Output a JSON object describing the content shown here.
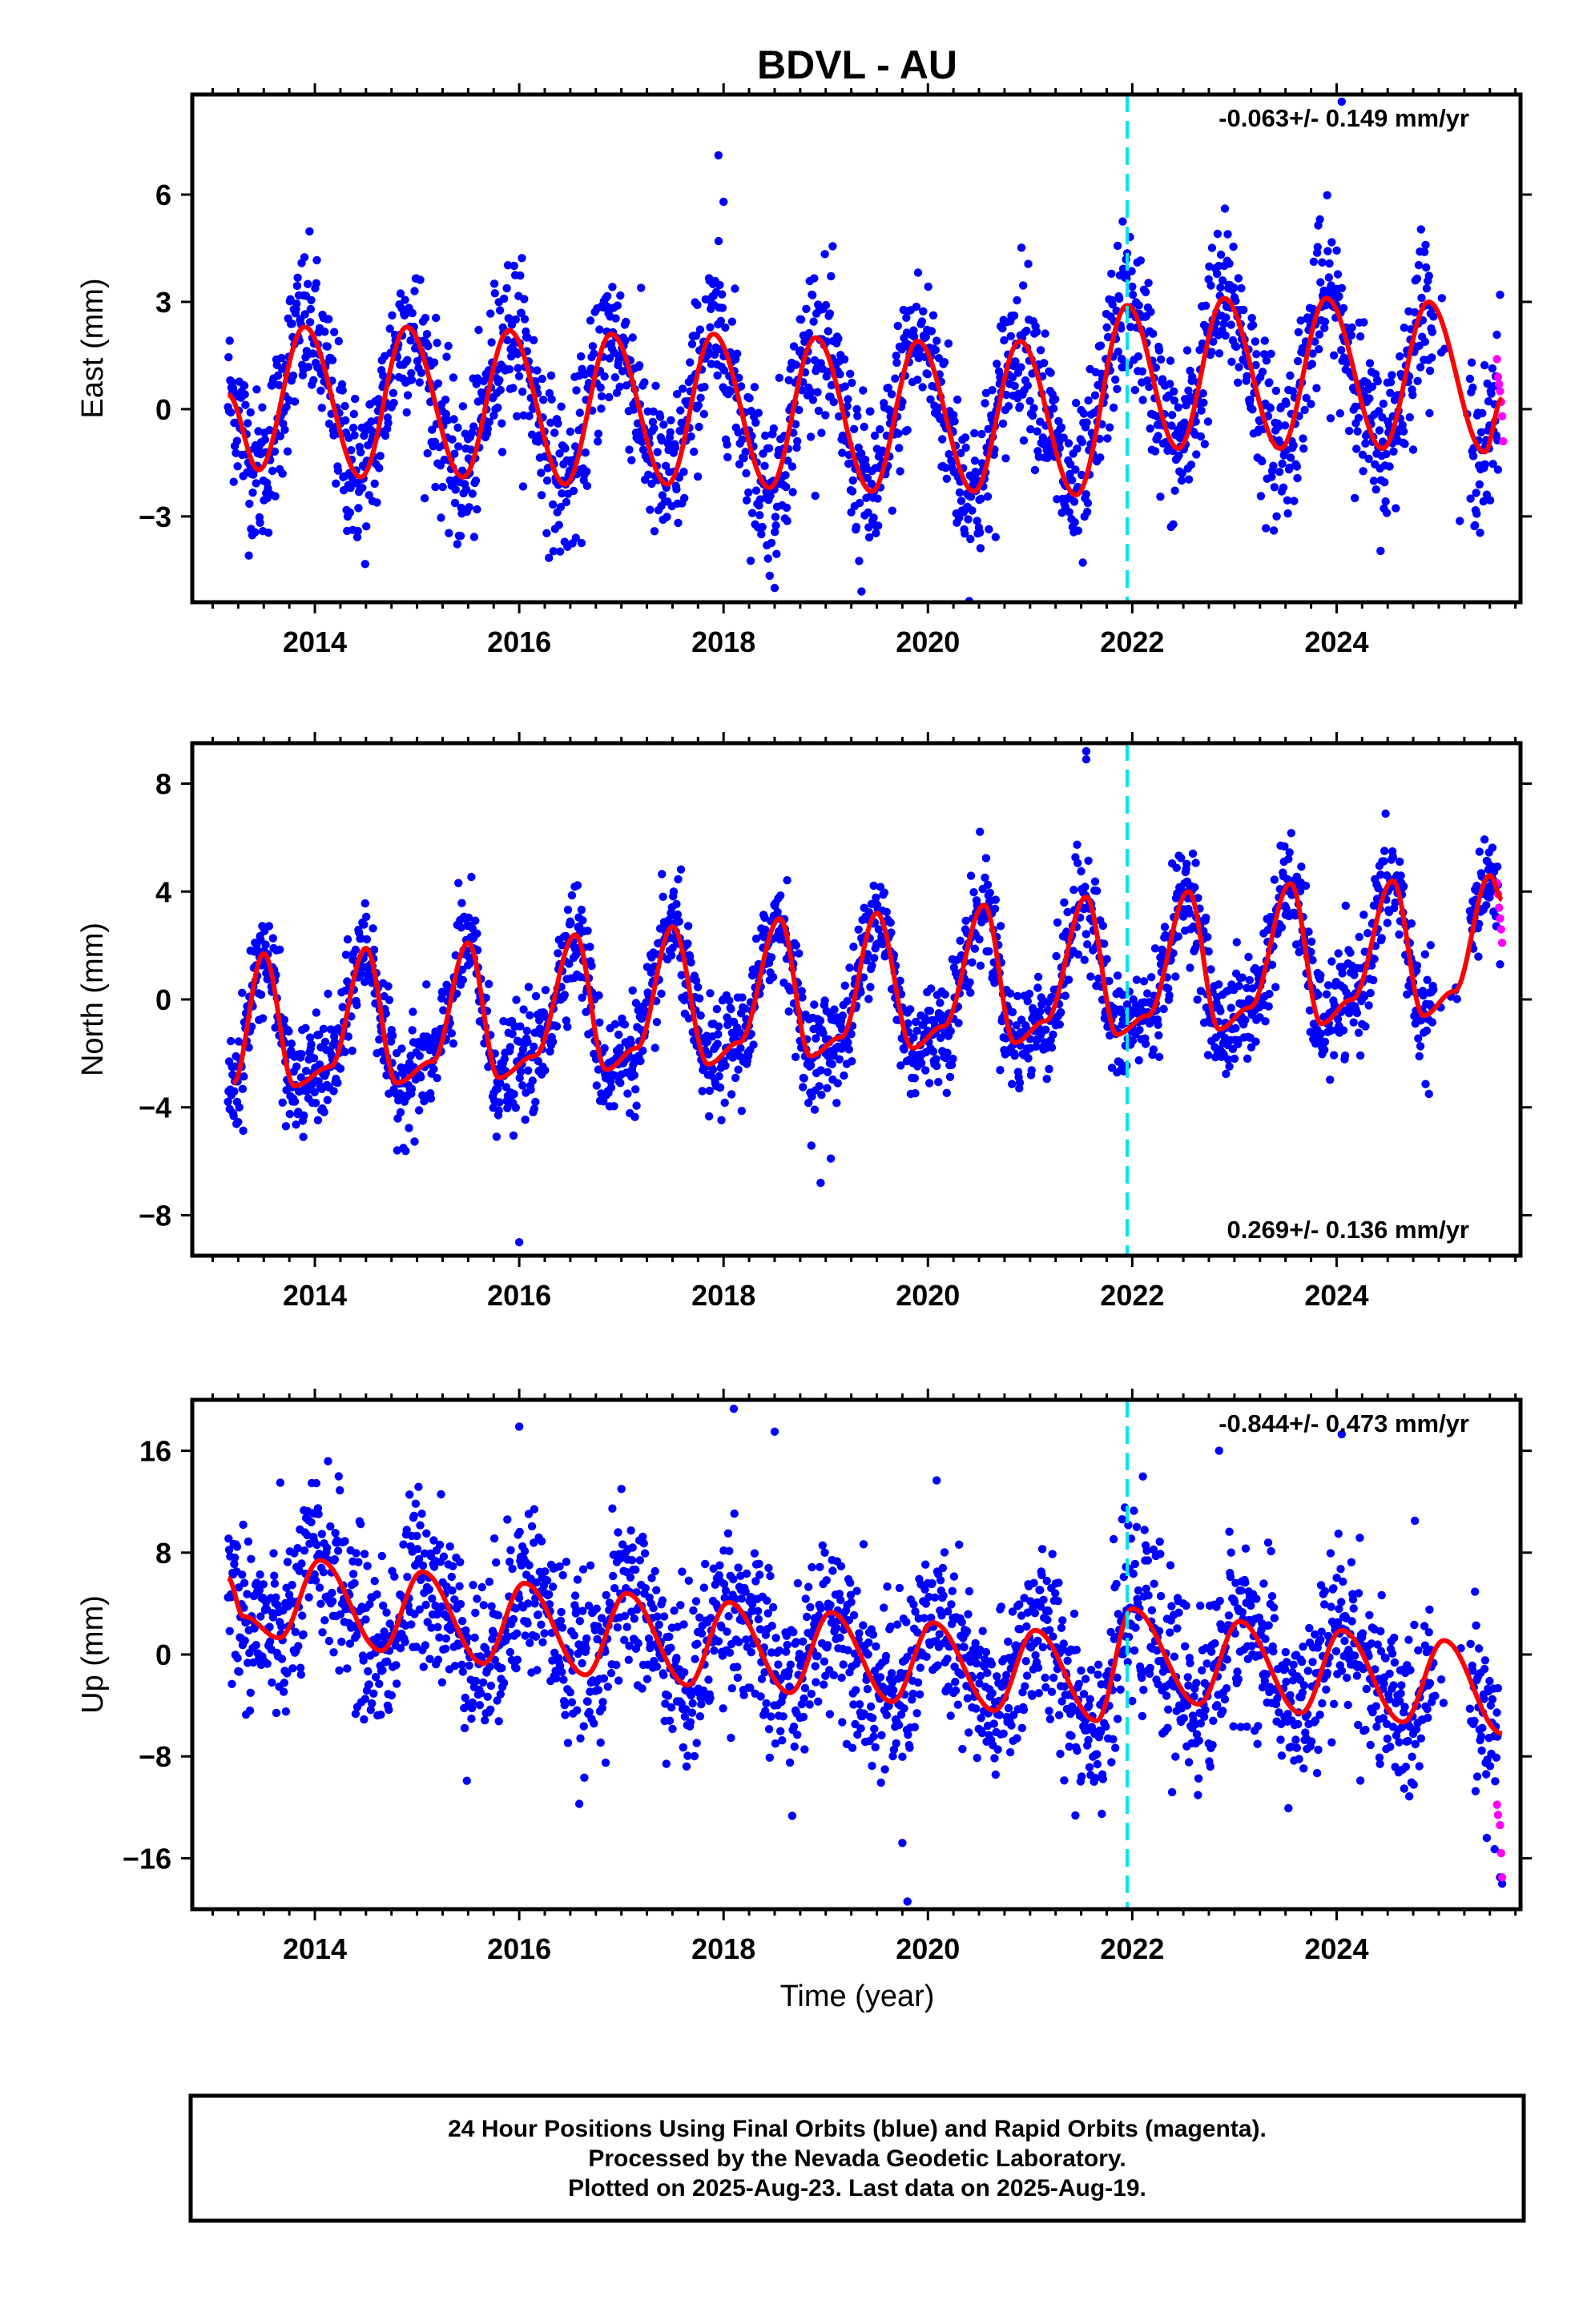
{
  "chart_data": {
    "type": "scatter",
    "title": "BDVL - AU",
    "xlabel": "Time (year)",
    "x_ticks": [
      2014,
      2016,
      2018,
      2020,
      2022,
      2024
    ],
    "xlim": [
      2012.8,
      2025.8
    ],
    "event_line_year": 2021.95,
    "colors": {
      "final_orbits": "#0000ff",
      "rapid_orbits": "#ff00ff",
      "model": "#ff0000",
      "event_line": "#00e5ee"
    },
    "panels": [
      {
        "id": "east",
        "ylabel": "East (mm)",
        "ylim": [
          -5.4,
          8.8
        ],
        "yticks": [
          6,
          3,
          0,
          -3
        ],
        "ytick_labels": [
          "6",
          "3",
          "0",
          "−3"
        ],
        "rate_label": "-0.063+/- 0.149 mm/yr",
        "rate_position": "top-right",
        "model": {
          "offset": 0.0,
          "trend": -0.063,
          "amp": 2.2,
          "amp_trend": 0.05,
          "peak": 0.9,
          "semi_amp": 0.25,
          "semi_peak": 0.2,
          "base_year": 2019.5
        },
        "noise": 1.1,
        "model_anchors": [
          [
            2013.15,
            0.4
          ],
          [
            2013.45,
            -1.7
          ],
          [
            2013.9,
            2.3
          ],
          [
            2014.45,
            -1.9
          ],
          [
            2014.9,
            2.3
          ],
          [
            2015.45,
            -1.9
          ],
          [
            2015.9,
            2.2
          ],
          [
            2016.45,
            -2.1
          ],
          [
            2016.9,
            2.1
          ],
          [
            2017.45,
            -2.1
          ],
          [
            2017.9,
            2.1
          ],
          [
            2018.45,
            -2.2
          ],
          [
            2018.9,
            2.0
          ],
          [
            2019.45,
            -2.3
          ],
          [
            2019.9,
            1.9
          ],
          [
            2020.45,
            -2.3
          ],
          [
            2020.9,
            1.9
          ],
          [
            2021.45,
            -2.4
          ],
          [
            2021.95,
            2.9
          ],
          [
            2022.45,
            -1.1
          ],
          [
            2022.9,
            3.1
          ],
          [
            2023.45,
            -1.1
          ],
          [
            2023.9,
            3.1
          ],
          [
            2024.45,
            -1.1
          ],
          [
            2024.9,
            3.0
          ],
          [
            2025.45,
            -1.2
          ],
          [
            2025.62,
            0.3
          ]
        ],
        "outliers": [
          [
            2017.95,
            7.1
          ],
          [
            2018.0,
            5.8
          ],
          [
            2024.05,
            8.6
          ],
          [
            2019.35,
            -5.1
          ],
          [
            2018.5,
            -5.0
          ],
          [
            2025.6,
            3.2
          ]
        ]
      },
      {
        "id": "north",
        "ylabel": "North (mm)",
        "ylim": [
          -9.5,
          9.5
        ],
        "yticks": [
          8,
          4,
          0,
          -4,
          -8
        ],
        "ytick_labels": [
          "8",
          "4",
          "0",
          "−4",
          "−8"
        ],
        "rate_label": "0.269+/- 0.136 mm/yr",
        "rate_position": "bottom-right",
        "model": {
          "offset": 0.0,
          "trend": 0.269,
          "amp": 2.4,
          "amp_trend": 0.1,
          "peak": 0.55,
          "semi_amp": 0.8,
          "semi_peak": 0.05,
          "base_year": 2019.5
        },
        "noise": 1.0,
        "model_anchors": [
          [
            2013.2,
            -3.1
          ],
          [
            2013.5,
            1.7
          ],
          [
            2013.8,
            -3.2
          ],
          [
            2014.15,
            -2.5
          ],
          [
            2014.5,
            1.9
          ],
          [
            2014.8,
            -3.1
          ],
          [
            2015.15,
            -2.3
          ],
          [
            2015.5,
            2.1
          ],
          [
            2015.8,
            -2.9
          ],
          [
            2016.15,
            -2.1
          ],
          [
            2016.55,
            2.4
          ],
          [
            2016.85,
            -2.6
          ],
          [
            2017.15,
            -1.8
          ],
          [
            2017.5,
            2.7
          ],
          [
            2017.85,
            -2.4
          ],
          [
            2018.15,
            -1.6
          ],
          [
            2018.55,
            3.0
          ],
          [
            2018.85,
            -2.1
          ],
          [
            2019.15,
            -1.4
          ],
          [
            2019.5,
            3.2
          ],
          [
            2019.85,
            -1.8
          ],
          [
            2020.15,
            -1.0
          ],
          [
            2020.55,
            3.5
          ],
          [
            2020.85,
            -1.6
          ],
          [
            2021.15,
            -0.8
          ],
          [
            2021.55,
            3.8
          ],
          [
            2021.85,
            -1.3
          ],
          [
            2022.15,
            -0.6
          ],
          [
            2022.55,
            4.0
          ],
          [
            2022.85,
            -1.1
          ],
          [
            2023.15,
            -0.3
          ],
          [
            2023.55,
            4.3
          ],
          [
            2023.85,
            -0.9
          ],
          [
            2024.15,
            0.0
          ],
          [
            2024.55,
            4.4
          ],
          [
            2024.85,
            -0.6
          ],
          [
            2025.15,
            0.3
          ],
          [
            2025.5,
            4.6
          ],
          [
            2025.62,
            3.7
          ]
        ],
        "outliers": [
          [
            2021.55,
            9.2
          ],
          [
            2021.55,
            8.9
          ],
          [
            2016.0,
            -9.0
          ],
          [
            2018.95,
            -6.8
          ],
          [
            2019.05,
            -5.9
          ],
          [
            2025.6,
            1.3
          ]
        ]
      },
      {
        "id": "up",
        "ylabel": "Up (mm)",
        "ylim": [
          -20,
          20
        ],
        "yticks": [
          16,
          8,
          0,
          -8,
          -16
        ],
        "ytick_labels": [
          "16",
          "8",
          "0",
          "−8",
          "−16"
        ],
        "rate_label": "-0.844+/- 0.473 mm/yr",
        "rate_position": "top-right",
        "model": {
          "offset": 0.0,
          "trend": -0.844,
          "amp": 4.0,
          "amp_trend": 0.0,
          "peak": 0.05,
          "semi_amp": 0.6,
          "semi_peak": 0.1,
          "base_year": 2019.5
        },
        "noise": 3.4,
        "model_anchors": [
          [
            2013.15,
            6.0
          ],
          [
            2013.3,
            3.0
          ],
          [
            2013.65,
            1.3
          ],
          [
            2014.05,
            7.4
          ],
          [
            2014.65,
            0.3
          ],
          [
            2015.05,
            6.5
          ],
          [
            2015.65,
            -0.7
          ],
          [
            2016.05,
            5.6
          ],
          [
            2016.65,
            -1.6
          ],
          [
            2017.05,
            4.8
          ],
          [
            2017.65,
            -2.4
          ],
          [
            2018.05,
            4.1
          ],
          [
            2018.65,
            -3.0
          ],
          [
            2019.05,
            3.3
          ],
          [
            2019.65,
            -3.7
          ],
          [
            2020.05,
            2.5
          ],
          [
            2020.65,
            -4.4
          ],
          [
            2021.05,
            1.9
          ],
          [
            2021.65,
            -5.2
          ],
          [
            2022.0,
            3.6
          ],
          [
            2022.65,
            -3.9
          ],
          [
            2023.05,
            2.6
          ],
          [
            2023.65,
            -4.6
          ],
          [
            2024.05,
            1.9
          ],
          [
            2024.65,
            -5.3
          ],
          [
            2025.05,
            1.1
          ],
          [
            2025.62,
            -6.2
          ]
        ],
        "outliers": [
          [
            2018.1,
            19.3
          ],
          [
            2016.0,
            17.9
          ],
          [
            2018.5,
            17.5
          ],
          [
            2019.8,
            -19.4
          ],
          [
            2019.75,
            -14.8
          ],
          [
            2024.05,
            17.3
          ],
          [
            2022.85,
            16.0
          ],
          [
            2025.6,
            -17.5
          ],
          [
            2025.62,
            -18.0
          ]
        ]
      }
    ],
    "rapid_orbit_points": {
      "east": [
        [
          2025.57,
          1.4
        ],
        [
          2025.58,
          0.9
        ],
        [
          2025.59,
          0.7
        ],
        [
          2025.6,
          0.5
        ],
        [
          2025.61,
          0.2
        ],
        [
          2025.62,
          -0.2
        ],
        [
          2025.63,
          -0.9
        ]
      ],
      "north": [
        [
          2025.57,
          4.3
        ],
        [
          2025.58,
          3.9
        ],
        [
          2025.59,
          3.4
        ],
        [
          2025.6,
          3.0
        ],
        [
          2025.61,
          2.6
        ],
        [
          2025.62,
          2.1
        ]
      ],
      "up": [
        [
          2025.57,
          -11.8
        ],
        [
          2025.58,
          -12.6
        ],
        [
          2025.6,
          -13.4
        ],
        [
          2025.61,
          -15.6
        ],
        [
          2025.62,
          -17.5
        ]
      ]
    }
  },
  "footer": {
    "line1": "24 Hour Positions Using Final Orbits (blue) and Rapid Orbits (magenta).",
    "line2": "Processed by the Nevada Geodetic Laboratory.",
    "line3": "Plotted on 2025-Aug-23. Last data on 2025-Aug-19."
  }
}
